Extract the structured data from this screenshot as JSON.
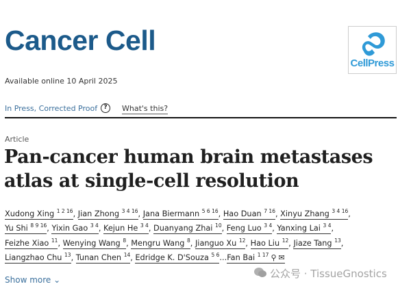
{
  "journal": {
    "name": "Cancer Cell",
    "publisher_logo_text": "CellPress",
    "brand_color": "#1c5a8a",
    "logo_color": "#2f9ad7"
  },
  "availability": "Available online 10 April 2025",
  "status": {
    "label": "In Press, Corrected Proof",
    "help_icon": "question-circle-icon",
    "whats_this": "What's this?"
  },
  "article": {
    "type": "Article",
    "title": "Pan-cancer human brain metastases atlas at single-cell resolution"
  },
  "authors": [
    [
      {
        "name": "Xudong Xing",
        "sup": "1 2 16"
      },
      {
        "name": "Jian Zhong",
        "sup": "3 4 16"
      },
      {
        "name": "Jana Biermann",
        "sup": "5 6 16"
      },
      {
        "name": "Hao Duan",
        "sup": "7 16"
      },
      {
        "name": "Xinyu Zhang",
        "sup": "3 4 16"
      }
    ],
    [
      {
        "name": "Yu Shi",
        "sup": "8 9 16"
      },
      {
        "name": "Yixin Gao",
        "sup": "3 4"
      },
      {
        "name": "Kejun He",
        "sup": "3 4"
      },
      {
        "name": "Duanyang Zhai",
        "sup": "10"
      },
      {
        "name": "Feng Luo",
        "sup": "3 4"
      },
      {
        "name": "Yanxing Lai",
        "sup": "3 4"
      }
    ],
    [
      {
        "name": "Feizhe Xiao",
        "sup": "11"
      },
      {
        "name": "Wenying Wang",
        "sup": "8"
      },
      {
        "name": "Mengru Wang",
        "sup": "8"
      },
      {
        "name": "Jianguo Xu",
        "sup": "12"
      },
      {
        "name": "Hao Liu",
        "sup": "12"
      },
      {
        "name": "Jiaze Tang",
        "sup": "13"
      }
    ],
    [
      {
        "name": "Liangzhao Chu",
        "sup": "13"
      },
      {
        "name": "Tunan Chen",
        "sup": "14"
      },
      {
        "name": "Edridge K. D'Souza",
        "sup": "5 6"
      }
    ]
  ],
  "last_author": {
    "name": "Fan Bai",
    "sup": "1 17",
    "icons": [
      "person-icon",
      "envelope-icon"
    ]
  },
  "show_more": "Show more",
  "watermark": "公众号 · TissueGnostics"
}
